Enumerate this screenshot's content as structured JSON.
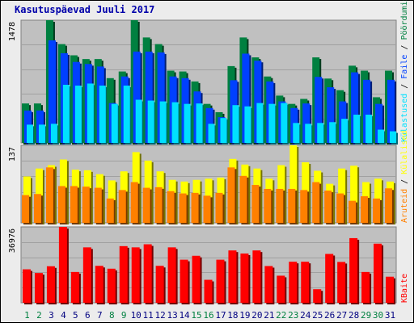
{
  "chart_data": [
    {
      "type": "bar",
      "title": "Kasutuspäevad Juuli 2017",
      "categories": [
        "1",
        "2",
        "3",
        "4",
        "5",
        "6",
        "7",
        "8",
        "9",
        "10",
        "11",
        "12",
        "13",
        "14",
        "15",
        "16",
        "17",
        "18",
        "19",
        "20",
        "21",
        "22",
        "23",
        "24",
        "25",
        "26",
        "27",
        "28",
        "29",
        "30",
        "31"
      ],
      "weekend_categories": [
        "1",
        "2",
        "8",
        "9",
        "15",
        "16",
        "22",
        "23",
        "29",
        "30"
      ],
      "ytick_label": "1478",
      "ylim": [
        0,
        1478
      ],
      "series": [
        {
          "name": "Pöördumisi",
          "color": "#008040",
          "values": [
            475,
            475,
            1478,
            1190,
            1055,
            1010,
            1010,
            780,
            860,
            1478,
            1270,
            1190,
            870,
            860,
            740,
            470,
            370,
            925,
            1270,
            1030,
            800,
            570,
            470,
            530,
            1030,
            775,
            635,
            930,
            870,
            550,
            870
          ]
        },
        {
          "name": "Faile",
          "color": "#0040ff",
          "values": [
            390,
            390,
            1235,
            1080,
            975,
            950,
            920,
            480,
            800,
            1100,
            1100,
            1090,
            800,
            780,
            620,
            420,
            310,
            755,
            1075,
            990,
            740,
            500,
            420,
            475,
            795,
            670,
            500,
            850,
            760,
            470,
            760
          ]
        },
        {
          "name": "Külastused",
          "color": "#00e0ff",
          "values": [
            220,
            220,
            230,
            700,
            690,
            715,
            690,
            470,
            690,
            520,
            510,
            500,
            490,
            470,
            475,
            230,
            300,
            455,
            440,
            480,
            470,
            480,
            240,
            230,
            240,
            250,
            290,
            340,
            340,
            160,
            140
          ]
        }
      ]
    },
    {
      "type": "bar",
      "ytick_label": "137",
      "ylim": [
        0,
        137
      ],
      "series": [
        {
          "name": "Külalised",
          "color": "#ffff00",
          "values": [
            82,
            96,
            102,
            112,
            94,
            93,
            86,
            75,
            91,
            125,
            110,
            91,
            76,
            73,
            76,
            78,
            80,
            113,
            103,
            96,
            78,
            102,
            137,
            107,
            92,
            69,
            96,
            101,
            72,
            78,
            73
          ]
        },
        {
          "name": "Aruteid",
          "color": "#ff8000",
          "values": [
            49,
            51,
            98,
            65,
            65,
            64,
            62,
            43,
            58,
            72,
            62,
            63,
            56,
            52,
            53,
            48,
            53,
            98,
            83,
            67,
            60,
            60,
            60,
            58,
            72,
            57,
            52,
            39,
            47,
            43,
            61
          ]
        }
      ]
    },
    {
      "type": "bar",
      "ytick_label": "36976",
      "ylim": [
        0,
        36976
      ],
      "series": [
        {
          "name": "KBaite",
          "color": "#ff0000",
          "values": [
            16300,
            14500,
            17800,
            36976,
            15000,
            27000,
            18000,
            16600,
            27600,
            27000,
            28500,
            18000,
            27000,
            21000,
            22900,
            11200,
            21000,
            25500,
            24000,
            25500,
            17900,
            13200,
            20000,
            20000,
            6600,
            23800,
            19900,
            31500,
            15000,
            28800,
            12700
          ]
        }
      ]
    }
  ]
}
